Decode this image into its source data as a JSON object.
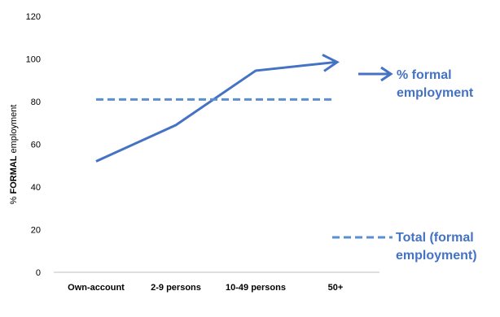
{
  "chart_data": {
    "type": "line",
    "categories": [
      "Own-account",
      "2-9 persons",
      "10-49 persons",
      "50+"
    ],
    "ylabel_prefix": "% ",
    "ylabel_bold": "FORMAL",
    "ylabel_suffix": " employment",
    "ylim": [
      0,
      120
    ],
    "yticks": [
      0,
      20,
      40,
      60,
      80,
      100,
      120
    ],
    "grid": false,
    "series": [
      {
        "name_line1": "% formal",
        "name_line2": "employment",
        "values": [
          52,
          69,
          94.5,
          98.5
        ],
        "color": "#4472C4",
        "style": "solid",
        "end_arrow": true
      },
      {
        "name_line1": "Total (formal",
        "name_line2": "employment)",
        "values": [
          81,
          81,
          81,
          81
        ],
        "color": "#5B8FD0",
        "style": "dashed"
      }
    ],
    "legend_placement": "right"
  }
}
